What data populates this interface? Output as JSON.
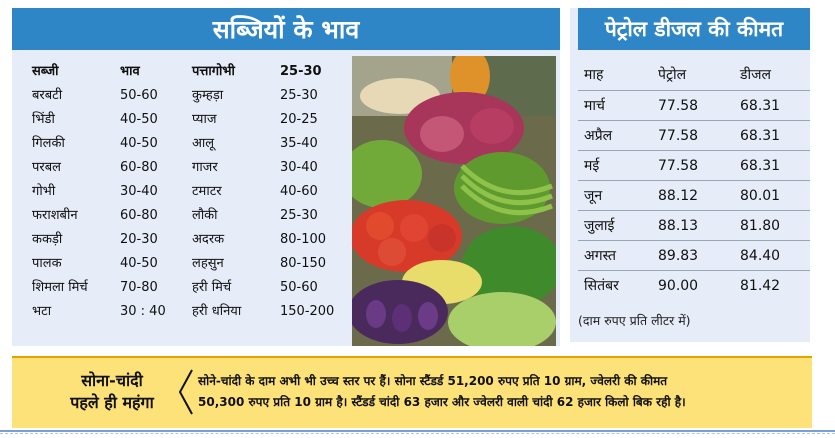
{
  "vegetables": {
    "title": "सब्जियों के भाव",
    "header": {
      "name": "सब्जी",
      "price": "भाव"
    },
    "left": [
      {
        "name": "बरबटी",
        "price": "50-60"
      },
      {
        "name": "भिंडी",
        "price": "40-50"
      },
      {
        "name": "गिलकी",
        "price": "40-50"
      },
      {
        "name": "परबल",
        "price": "60-80"
      },
      {
        "name": "गोभी",
        "price": "30-40"
      },
      {
        "name": "फराशबीन",
        "price": "60-80"
      },
      {
        "name": "ककड़ी",
        "price": "20-30"
      },
      {
        "name": "पालक",
        "price": "40-50"
      },
      {
        "name": "शिमला मिर्च",
        "price": "70-80"
      },
      {
        "name": "भटा",
        "price": "30 : 40"
      }
    ],
    "right": [
      {
        "name": "पत्तागोभी",
        "price": "25-30"
      },
      {
        "name": "कुम्हड़ा",
        "price": "25-30"
      },
      {
        "name": "प्याज",
        "price": "20-25"
      },
      {
        "name": "आलू",
        "price": "35-40"
      },
      {
        "name": "गाजर",
        "price": "30-40"
      },
      {
        "name": "टमाटर",
        "price": "40-60"
      },
      {
        "name": "लौकी",
        "price": "25-30"
      },
      {
        "name": "अदरक",
        "price": "80-100"
      },
      {
        "name": "लहसुन",
        "price": "80-150"
      },
      {
        "name": "हरी मिर्च",
        "price": "50-60"
      },
      {
        "name": "हरी धनिया",
        "price": "150-200"
      }
    ]
  },
  "fuel": {
    "title": "पेट्रोल डीजल की कीमत",
    "header": {
      "month": "माह",
      "petrol": "पेट्रोल",
      "diesel": "डीजल"
    },
    "rows": [
      {
        "month": "मार्च",
        "petrol": "77.58",
        "diesel": "68.31"
      },
      {
        "month": "अप्रैल",
        "petrol": "77.58",
        "diesel": "68.31"
      },
      {
        "month": "मई",
        "petrol": "77.58",
        "diesel": "68.31"
      },
      {
        "month": "जून",
        "petrol": "88.12",
        "diesel": "80.01"
      },
      {
        "month": "जुलाई",
        "petrol": "88.13",
        "diesel": "81.80"
      },
      {
        "month": "अगस्त",
        "petrol": "89.83",
        "diesel": "84.40"
      },
      {
        "month": "सितंबर",
        "petrol": "90.00",
        "diesel": "81.42"
      }
    ],
    "note": "(दाम रुपए प्रति लीटर में)"
  },
  "gold": {
    "title_line1": "सोना-चांदी",
    "title_line2": "पहले ही महंगा",
    "text_line1": "सोने-चांदी के दाम अभी भी उच्च स्तर पर हैं। सोना स्टैंडर्ड 51,200 रुपए प्रति 10 ग्राम, ज्वेलरी की कीमत",
    "text_line2": "50,300 रुपए प्रति 10 ग्राम है। स्टैंडर्ड चांदी 63 हजार और ज्वेलरी वाली चांदी 62 हजार किलो बिक रही है।"
  },
  "colors": {
    "header_blue": "#2f86c7",
    "panel_bg": "#e6ecf8",
    "gold_bg": "#fde27a"
  }
}
